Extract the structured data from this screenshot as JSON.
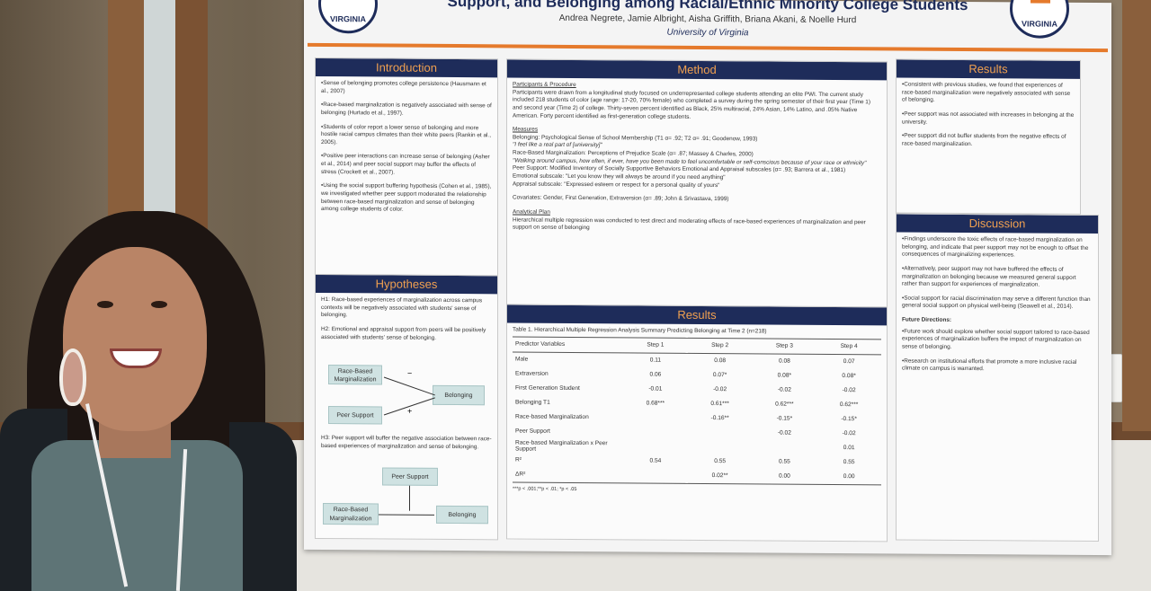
{
  "poster": {
    "title": "Support, and Belonging among Racial/Ethnic Minority College Students",
    "authors": "Andrea Negrete, Jamie Albright, Aisha Griffith, Briana Akani, & Noelle Hurd",
    "university": "University of Virginia",
    "logo_text": "VIRGINIA",
    "colors": {
      "navy": "#1e2c5a",
      "orange": "#e57a2c"
    },
    "introduction": {
      "heading": "Introduction",
      "bullets": [
        "Sense of belonging promotes college persistence (Hausmann et al., 2007)",
        "Race-based marginalization is negatively associated with sense of belonging (Hurtado et al., 1997).",
        "Students of color report a lower sense of belonging and more hostile racial campus climates than their white peers (Rankin et al., 2005).",
        "Positive peer interactions can increase sense of belonging (Asher et al., 2014) and peer social support may buffer the effects of stress (Crockett et al., 2007).",
        "Using the social support buffering hypothesis (Cohen et al., 1985), we investigated whether peer support moderated the relationship between race-based marginalization and sense of belonging among college students of color."
      ]
    },
    "hypotheses": {
      "heading": "Hypotheses",
      "h1": "H1: Race-based experiences of marginalization across campus contexts will be negatively associated with students' sense of belonging.",
      "h2": "H2: Emotional and appraisal support from peers will be positively associated with students' sense of belonging.",
      "h3": "H3: Peer support will buffer the negative association between race-based experiences of marginalization and sense of belonging.",
      "diagram1": {
        "a": "Race-Based Marginalization",
        "b": "Peer Support",
        "c": "Belonging",
        "minus": "−",
        "plus": "+"
      },
      "diagram2": {
        "a": "Peer Support",
        "b": "Race-Based Marginalization",
        "c": "Belonging"
      }
    },
    "method": {
      "heading": "Method",
      "participants_heading": "Participants & Procedure",
      "participants": "Participants were drawn from a longitudinal study focused on underrepresented college students attending an elite PWI. The current study included 218 students of color (age range: 17-20, 70% female) who completed a survey during the spring semester of their first year (Time 1) and second year (Time 2) of college. Thirty-seven percent identified as Black, 25% multiracial, 24% Asian, 14% Latino, and .05% Native American. Forty percent identified as first-generation college students.",
      "measures_heading": "Measures",
      "measures": [
        "Belonging: Psychological Sense of School Membership (T1 α= .92; T2 α= .91; Goodenow, 1993)",
        "\"I feel like a real part of [university]\"",
        "Race-Based Marginalization: Perceptions of Prejudice Scale (α= .87; Massey & Charles, 2000)",
        "\"Walking around campus, how often, if ever, have you been made to feel uncomfortable or self-conscious because of your race or ethnicity\"",
        "Peer Support: Modified Inventory of Socially Supportive Behaviors Emotional and Appraisal subscales (α= .93; Barrera et al., 1981)",
        "Emotional subscale: \"Let you know they will always be around if you need anything\"",
        "Appraisal subscale: \"Expressed esteem or respect for a personal quality of yours\""
      ],
      "covariates": "Covariates: Gender, First Generation, Extraversion (α= .89; John & Srivastava, 1999)",
      "analytic_heading": "Analytical Plan",
      "analytic": "Hierarchical multiple regression was conducted to test direct and moderating effects of race-based experiences of marginalization and peer support on sense of belonging"
    },
    "results_table": {
      "heading": "Results",
      "caption": "Table 1. Hierarchical Multiple Regression Analysis Summary Predicting Belonging at Time 2 (n=218)",
      "columns": [
        "Predictor Variables",
        "Step 1",
        "Step 2",
        "Step 3",
        "Step 4"
      ],
      "rows": [
        [
          "Male",
          "0.11",
          "0.08",
          "0.08",
          "0.07"
        ],
        [
          "Extraversion",
          "0.06",
          "0.07*",
          "0.08*",
          "0.08*"
        ],
        [
          "First Generation Student",
          "-0.01",
          "-0.02",
          "-0.02",
          "-0.02"
        ],
        [
          "Belonging T1",
          "0.68***",
          "0.61***",
          "0.62***",
          "0.62***"
        ],
        [
          "Race-based Marginalization",
          "",
          "-0.16**",
          "-0.15*",
          "-0.15*"
        ],
        [
          "Peer Support",
          "",
          "",
          "-0.02",
          "-0.02"
        ],
        [
          "Race-based Marginalization x Peer Support",
          "",
          "",
          "",
          "0.01"
        ],
        [
          "R²",
          "0.54",
          "0.55",
          "0.55",
          "0.55"
        ],
        [
          "ΔR²",
          "",
          "0.02**",
          "0.00",
          "0.00"
        ]
      ],
      "note": "***p < .001;**p < .01; *p < .05"
    },
    "results": {
      "heading": "Results",
      "bullets": [
        "Consistent with previous studies, we found that experiences of race-based marginalization were negatively associated with sense of belonging.",
        "Peer support was not associated with increases in belonging at the university.",
        "Peer support did not buffer students from the negative effects of race-based marginalization."
      ]
    },
    "discussion": {
      "heading": "Discussion",
      "bullets": [
        "Findings underscore the toxic effects of race-based marginalization on belonging, and indicate that peer support may not be enough to offset the consequences of marginalizing experiences.",
        "Alternatively, peer support may not have buffered the effects of marginalization on belonging because we measured general support rather than support for experiences of marginalization.",
        "Social support for racial discrimination may serve a different function than general social support on physical well-being (Seawell et al., 2014)."
      ],
      "future_heading": "Future Directions:",
      "future": [
        "Future work should explore whether social support tailored to race-based experiences of marginalization buffers the impact of marginalization on sense of belonging.",
        "Research on institutional efforts that promote a more inclusive racial climate on campus is warranted."
      ]
    }
  }
}
